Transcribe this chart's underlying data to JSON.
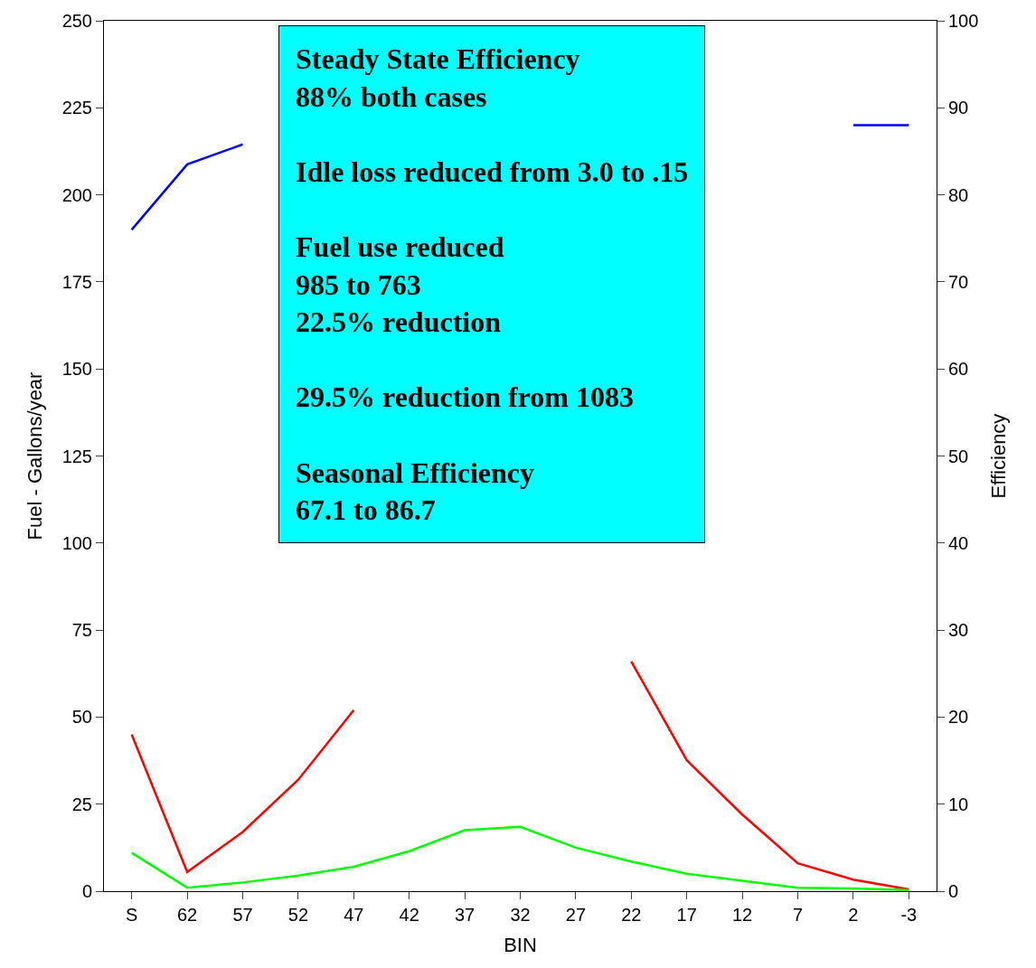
{
  "chart_data": {
    "type": "line",
    "xlabel": "BIN",
    "ylabel": "Fuel - Gallons/year",
    "y2label": "Efficiency",
    "categories": [
      "S",
      "62",
      "57",
      "52",
      "47",
      "42",
      "37",
      "32",
      "27",
      "22",
      "17",
      "12",
      "7",
      "2",
      "-3"
    ],
    "series": [
      {
        "color": "#0000ff",
        "axis": "y2",
        "values": [
          76,
          83.5,
          85.8,
          null,
          null,
          null,
          null,
          null,
          null,
          null,
          null,
          null,
          null,
          88,
          88
        ]
      },
      {
        "color": "#ff0000",
        "values": [
          45,
          5.5,
          17,
          32,
          52,
          null,
          null,
          null,
          null,
          66,
          37.6,
          22,
          8,
          3.3,
          0.5
        ]
      },
      {
        "color": "#00ff00",
        "values": [
          11,
          1,
          2.5,
          4.5,
          7,
          11.5,
          17.5,
          18.5,
          12.5,
          8.5,
          5,
          3,
          1,
          0.8,
          0.3
        ]
      }
    ],
    "ylim": [
      0,
      250
    ],
    "yticks": [
      0,
      25,
      50,
      75,
      100,
      125,
      150,
      175,
      200,
      225,
      250
    ],
    "y2lim": [
      0,
      100
    ],
    "y2ticks": [
      0,
      10,
      20,
      30,
      40,
      50,
      60,
      70,
      80,
      90,
      100
    ],
    "annotations": [
      "Steady State Efficiency\n88% both cases\n\nIdle loss reduced from 3.0 to .15\n\nFuel use reduced\n985 to 763\n22.5% reduction\n\n29.5% reduction from 1083\n\nSeasonal Efficiency\n67.1 to 86.7"
    ],
    "marker": "none",
    "line_style": "solid"
  }
}
